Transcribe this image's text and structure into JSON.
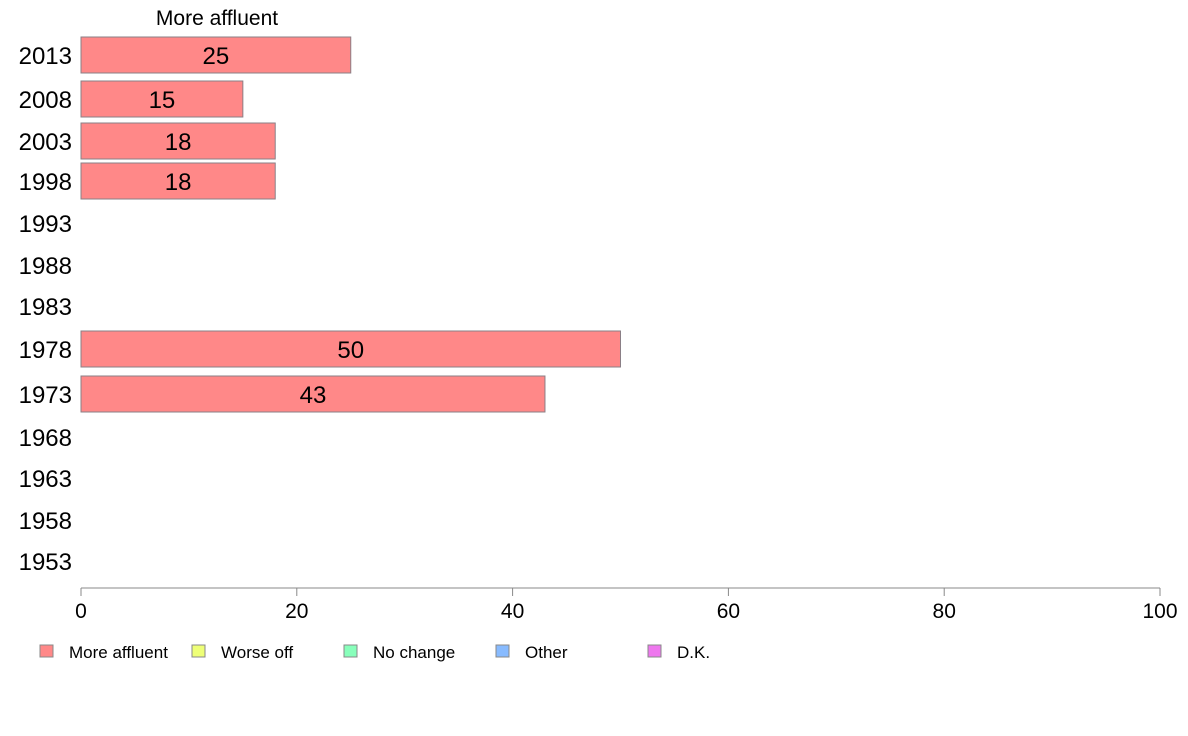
{
  "chart_data": {
    "type": "bar",
    "orientation": "horizontal",
    "title": "More affluent",
    "categories": [
      "2013",
      "2008",
      "2003",
      "1998",
      "1993",
      "1988",
      "1983",
      "1978",
      "1973",
      "1968",
      "1963",
      "1958",
      "1953"
    ],
    "series": [
      {
        "name": "More affluent",
        "color": "#ff8888",
        "values": [
          25,
          15,
          18,
          18,
          null,
          null,
          null,
          50,
          43,
          null,
          null,
          null,
          null
        ]
      }
    ],
    "xlim": [
      0,
      100
    ],
    "x_ticks": [
      0,
      20,
      40,
      60,
      80,
      100
    ],
    "legend": {
      "placement": "bottom-left",
      "entries": [
        {
          "label": "More affluent",
          "color": "#ff8888"
        },
        {
          "label": "Worse off",
          "color": "#eeff77"
        },
        {
          "label": "No change",
          "color": "#88ffbb"
        },
        {
          "label": "Other",
          "color": "#88bbff"
        },
        {
          "label": "D.K.",
          "color": "#ee77ee"
        }
      ]
    },
    "grid": false
  }
}
